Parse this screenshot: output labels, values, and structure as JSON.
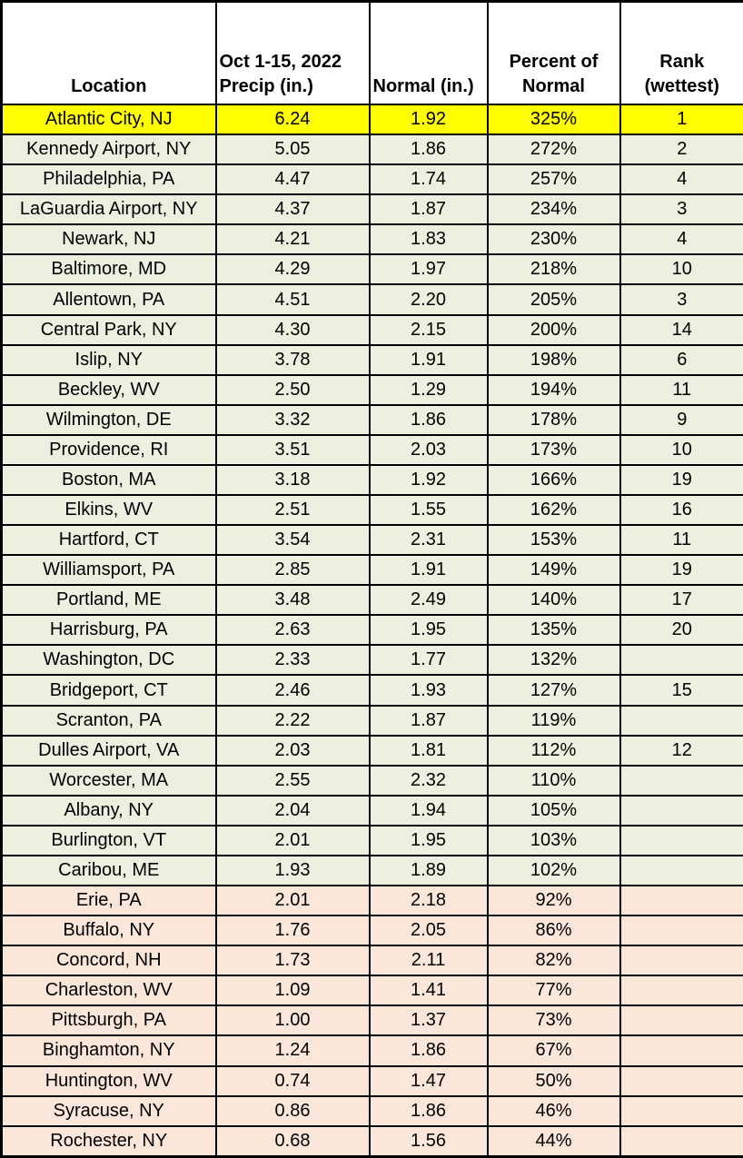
{
  "chart_data": {
    "type": "table",
    "columns": [
      {
        "id": "location",
        "line1": "",
        "line2": "Location",
        "align": "center"
      },
      {
        "id": "precip",
        "line1": "Oct 1-15, 2022",
        "line2": "Precip (in.)",
        "align": "left"
      },
      {
        "id": "normal",
        "line1": "",
        "line2": "Normal (in.)",
        "align": "left"
      },
      {
        "id": "percent",
        "line1": "Percent of",
        "line2": "Normal",
        "align": "center"
      },
      {
        "id": "rank",
        "line1": "Rank",
        "line2": "(wettest)",
        "align": "center"
      }
    ],
    "rows": [
      {
        "location": "Atlantic City, NJ",
        "precip": "6.24",
        "normal": "1.92",
        "percent": "325%",
        "rank": "1",
        "tone": "top"
      },
      {
        "location": "Kennedy Airport, NY",
        "precip": "5.05",
        "normal": "1.86",
        "percent": "272%",
        "rank": "2",
        "tone": "wet"
      },
      {
        "location": "Philadelphia, PA",
        "precip": "4.47",
        "normal": "1.74",
        "percent": "257%",
        "rank": "4",
        "tone": "wet"
      },
      {
        "location": "LaGuardia Airport, NY",
        "precip": "4.37",
        "normal": "1.87",
        "percent": "234%",
        "rank": "3",
        "tone": "wet"
      },
      {
        "location": "Newark, NJ",
        "precip": "4.21",
        "normal": "1.83",
        "percent": "230%",
        "rank": "4",
        "tone": "wet"
      },
      {
        "location": "Baltimore, MD",
        "precip": "4.29",
        "normal": "1.97",
        "percent": "218%",
        "rank": "10",
        "tone": "wet"
      },
      {
        "location": "Allentown, PA",
        "precip": "4.51",
        "normal": "2.20",
        "percent": "205%",
        "rank": "3",
        "tone": "wet"
      },
      {
        "location": "Central Park, NY",
        "precip": "4.30",
        "normal": "2.15",
        "percent": "200%",
        "rank": "14",
        "tone": "wet"
      },
      {
        "location": "Islip, NY",
        "precip": "3.78",
        "normal": "1.91",
        "percent": "198%",
        "rank": "6",
        "tone": "wet"
      },
      {
        "location": "Beckley, WV",
        "precip": "2.50",
        "normal": "1.29",
        "percent": "194%",
        "rank": "11",
        "tone": "wet"
      },
      {
        "location": "Wilmington, DE",
        "precip": "3.32",
        "normal": "1.86",
        "percent": "178%",
        "rank": "9",
        "tone": "wet"
      },
      {
        "location": "Providence, RI",
        "precip": "3.51",
        "normal": "2.03",
        "percent": "173%",
        "rank": "10",
        "tone": "wet"
      },
      {
        "location": "Boston, MA",
        "precip": "3.18",
        "normal": "1.92",
        "percent": "166%",
        "rank": "19",
        "tone": "wet"
      },
      {
        "location": "Elkins, WV",
        "precip": "2.51",
        "normal": "1.55",
        "percent": "162%",
        "rank": "16",
        "tone": "wet"
      },
      {
        "location": "Hartford, CT",
        "precip": "3.54",
        "normal": "2.31",
        "percent": "153%",
        "rank": "11",
        "tone": "wet"
      },
      {
        "location": "Williamsport, PA",
        "precip": "2.85",
        "normal": "1.91",
        "percent": "149%",
        "rank": "19",
        "tone": "wet"
      },
      {
        "location": "Portland, ME",
        "precip": "3.48",
        "normal": "2.49",
        "percent": "140%",
        "rank": "17",
        "tone": "wet"
      },
      {
        "location": "Harrisburg, PA",
        "precip": "2.63",
        "normal": "1.95",
        "percent": "135%",
        "rank": "20",
        "tone": "wet"
      },
      {
        "location": "Washington, DC",
        "precip": "2.33",
        "normal": "1.77",
        "percent": "132%",
        "rank": "",
        "tone": "wet"
      },
      {
        "location": "Bridgeport, CT",
        "precip": "2.46",
        "normal": "1.93",
        "percent": "127%",
        "rank": "15",
        "tone": "wet"
      },
      {
        "location": "Scranton, PA",
        "precip": "2.22",
        "normal": "1.87",
        "percent": "119%",
        "rank": "",
        "tone": "wet"
      },
      {
        "location": "Dulles Airport, VA",
        "precip": "2.03",
        "normal": "1.81",
        "percent": "112%",
        "rank": "12",
        "tone": "wet"
      },
      {
        "location": "Worcester, MA",
        "precip": "2.55",
        "normal": "2.32",
        "percent": "110%",
        "rank": "",
        "tone": "wet"
      },
      {
        "location": "Albany, NY",
        "precip": "2.04",
        "normal": "1.94",
        "percent": "105%",
        "rank": "",
        "tone": "wet"
      },
      {
        "location": "Burlington, VT",
        "precip": "2.01",
        "normal": "1.95",
        "percent": "103%",
        "rank": "",
        "tone": "wet"
      },
      {
        "location": "Caribou, ME",
        "precip": "1.93",
        "normal": "1.89",
        "percent": "102%",
        "rank": "",
        "tone": "wet"
      },
      {
        "location": "Erie, PA",
        "precip": "2.01",
        "normal": "2.18",
        "percent": "92%",
        "rank": "",
        "tone": "dry"
      },
      {
        "location": "Buffalo, NY",
        "precip": "1.76",
        "normal": "2.05",
        "percent": "86%",
        "rank": "",
        "tone": "dry"
      },
      {
        "location": "Concord, NH",
        "precip": "1.73",
        "normal": "2.11",
        "percent": "82%",
        "rank": "",
        "tone": "dry"
      },
      {
        "location": "Charleston, WV",
        "precip": "1.09",
        "normal": "1.41",
        "percent": "77%",
        "rank": "",
        "tone": "dry"
      },
      {
        "location": "Pittsburgh, PA",
        "precip": "1.00",
        "normal": "1.37",
        "percent": "73%",
        "rank": "",
        "tone": "dry"
      },
      {
        "location": "Binghamton, NY",
        "precip": "1.24",
        "normal": "1.86",
        "percent": "67%",
        "rank": "",
        "tone": "dry"
      },
      {
        "location": "Huntington, WV",
        "precip": "0.74",
        "normal": "1.47",
        "percent": "50%",
        "rank": "",
        "tone": "dry"
      },
      {
        "location": "Syracuse, NY",
        "precip": "0.86",
        "normal": "1.86",
        "percent": "46%",
        "rank": "",
        "tone": "dry"
      },
      {
        "location": "Rochester, NY",
        "precip": "0.68",
        "normal": "1.56",
        "percent": "44%",
        "rank": "",
        "tone": "dry"
      }
    ],
    "colors": {
      "top": "#ffff00",
      "wet": "#ebf1de",
      "dry": "#fae7d9",
      "header_bg": "#ffffff",
      "border": "#000000"
    },
    "layout_hints": {
      "grid": "all-black-borders",
      "tone_meaning": {
        "top": "wettest location highlight",
        "wet": "at or above normal (>=100%)",
        "dry": "below normal (<100%)"
      }
    }
  }
}
